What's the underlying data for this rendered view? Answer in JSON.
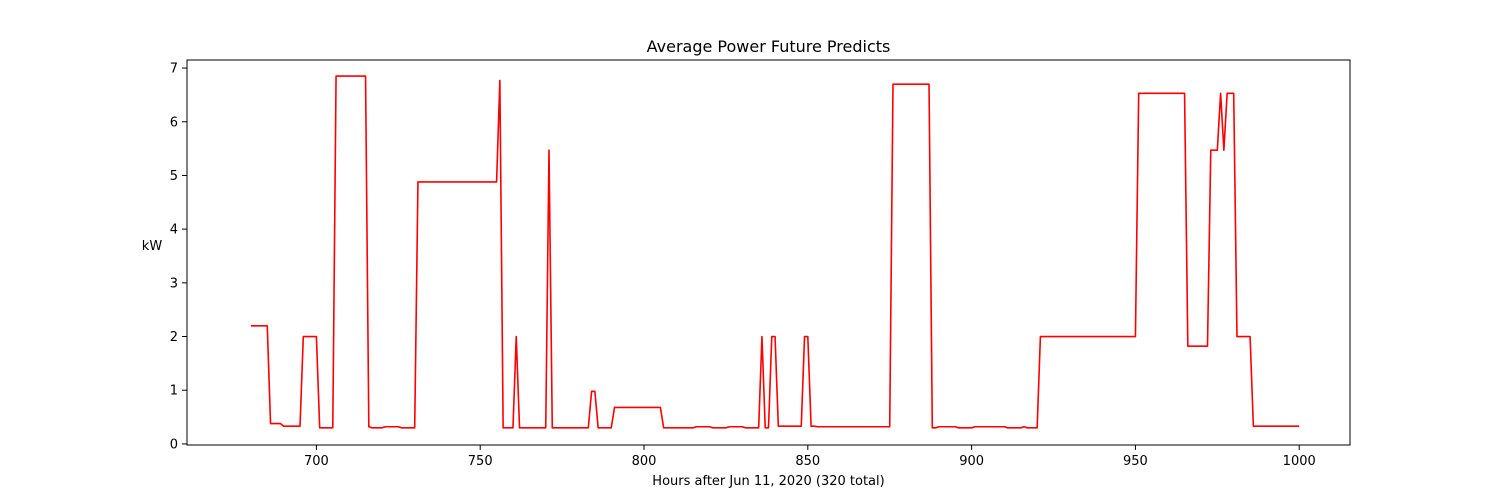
{
  "chart_data": {
    "type": "line",
    "title": "Average Power Future Predicts",
    "xlabel": "Hours after Jun 11, 2020 (320 total)",
    "ylabel": "kW",
    "xlim": [
      660.5,
      1015.5
    ],
    "ylim": [
      -0.02,
      7.15
    ],
    "xticks": [
      700,
      750,
      800,
      850,
      900,
      950,
      1000
    ],
    "yticks": [
      0,
      1,
      2,
      3,
      4,
      5,
      6,
      7
    ],
    "grid": false,
    "legend": "none",
    "series": [
      {
        "color": "#ff0000",
        "x": [
          680,
          685,
          686,
          689,
          690,
          691,
          695,
          696,
          700,
          701,
          705,
          706,
          715,
          716,
          717,
          720,
          721,
          725,
          726,
          730,
          731,
          755,
          756,
          757,
          760,
          761,
          762,
          770,
          771,
          772,
          783,
          784,
          785,
          786,
          790,
          791,
          805,
          806,
          815,
          816,
          820,
          821,
          825,
          826,
          830,
          831,
          835,
          836,
          837,
          838,
          839,
          840,
          841,
          848,
          849,
          850,
          851,
          852,
          853,
          875,
          876,
          887,
          888,
          889,
          890,
          895,
          896,
          900,
          901,
          910,
          911,
          915,
          916,
          917,
          920,
          921,
          950,
          951,
          965,
          966,
          972,
          973,
          975,
          976,
          977,
          978,
          980,
          981,
          985,
          986,
          1000
        ],
        "y": [
          2.2,
          2.2,
          0.38,
          0.38,
          0.33,
          0.33,
          0.33,
          2.0,
          2.0,
          0.3,
          0.3,
          6.85,
          6.85,
          0.32,
          0.3,
          0.3,
          0.32,
          0.32,
          0.3,
          0.3,
          4.88,
          4.88,
          6.77,
          0.3,
          0.3,
          2.0,
          0.3,
          0.3,
          5.47,
          0.3,
          0.3,
          0.98,
          0.98,
          0.3,
          0.3,
          0.68,
          0.68,
          0.3,
          0.3,
          0.32,
          0.32,
          0.3,
          0.3,
          0.32,
          0.32,
          0.3,
          0.3,
          2.0,
          0.3,
          0.3,
          2.0,
          2.0,
          0.33,
          0.33,
          2.0,
          2.0,
          0.33,
          0.33,
          0.32,
          0.32,
          6.7,
          6.7,
          0.3,
          0.3,
          0.32,
          0.32,
          0.3,
          0.3,
          0.32,
          0.32,
          0.3,
          0.3,
          0.32,
          0.3,
          0.3,
          2.0,
          2.0,
          6.53,
          6.53,
          1.82,
          1.82,
          5.47,
          5.47,
          6.53,
          5.47,
          6.53,
          6.53,
          2.0,
          2.0,
          0.33,
          0.33
        ]
      }
    ]
  }
}
